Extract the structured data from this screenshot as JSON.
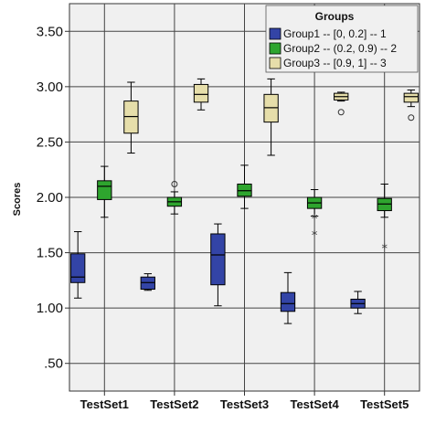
{
  "chart_data": {
    "type": "boxplot",
    "title": "",
    "xlabel": "",
    "ylabel": "Scores",
    "ylim": [
      0.25,
      3.75
    ],
    "yticks": [
      0.5,
      1.0,
      1.5,
      2.0,
      2.5,
      3.0,
      3.5
    ],
    "ytick_labels": [
      ".50",
      "1.00",
      "1.50",
      "2.00",
      "2.50",
      "3.00",
      "3.50"
    ],
    "grid": true,
    "legend_position": "top-right",
    "legend_title": "Groups",
    "categories": [
      "TestSet1",
      "TestSet2",
      "TestSet3",
      "TestSet4",
      "TestSet5"
    ],
    "series": [
      {
        "name": "Group1 -- [0, 0.2] -- 1",
        "color": "#3344a6",
        "boxes": [
          {
            "min": 1.09,
            "q1": 1.23,
            "median": 1.28,
            "q3": 1.49,
            "max": 1.69,
            "outliers": [],
            "extremes": []
          },
          {
            "min": 1.16,
            "q1": 1.17,
            "median": 1.23,
            "q3": 1.28,
            "max": 1.31,
            "outliers": [],
            "extremes": []
          },
          {
            "min": 1.02,
            "q1": 1.21,
            "median": 1.48,
            "q3": 1.67,
            "max": 1.76,
            "outliers": [],
            "extremes": []
          },
          {
            "min": 0.86,
            "q1": 0.97,
            "median": 1.04,
            "q3": 1.14,
            "max": 1.32,
            "outliers": [],
            "extremes": []
          },
          {
            "min": 0.95,
            "q1": 1.0,
            "median": 1.04,
            "q3": 1.08,
            "max": 1.15,
            "outliers": [],
            "extremes": []
          }
        ]
      },
      {
        "name": "Group2 -- (0.2, 0.9) -- 2",
        "color": "#2ea52e",
        "boxes": [
          {
            "min": 1.82,
            "q1": 1.98,
            "median": 2.1,
            "q3": 2.15,
            "max": 2.28,
            "outliers": [],
            "extremes": []
          },
          {
            "min": 1.85,
            "q1": 1.92,
            "median": 1.96,
            "q3": 2.0,
            "max": 2.05,
            "outliers": [
              2.12
            ],
            "extremes": []
          },
          {
            "min": 1.9,
            "q1": 2.01,
            "median": 2.06,
            "q3": 2.12,
            "max": 2.29,
            "outliers": [],
            "extremes": []
          },
          {
            "min": 1.83,
            "q1": 1.9,
            "median": 1.95,
            "q3": 2.0,
            "max": 2.07,
            "outliers": [],
            "extremes": [
              1.81,
              1.66
            ]
          },
          {
            "min": 1.82,
            "q1": 1.88,
            "median": 1.94,
            "q3": 1.99,
            "max": 2.12,
            "outliers": [],
            "extremes": [
              1.54
            ]
          }
        ]
      },
      {
        "name": "Group3 -- [0.9, 1] -- 3",
        "color": "#e6deaa",
        "boxes": [
          {
            "min": 2.4,
            "q1": 2.58,
            "median": 2.73,
            "q3": 2.87,
            "max": 3.04,
            "outliers": [],
            "extremes": []
          },
          {
            "min": 2.79,
            "q1": 2.86,
            "median": 2.93,
            "q3": 3.02,
            "max": 3.07,
            "outliers": [],
            "extremes": []
          },
          {
            "min": 2.38,
            "q1": 2.68,
            "median": 2.81,
            "q3": 2.93,
            "max": 3.07,
            "outliers": [],
            "extremes": []
          },
          {
            "min": 2.87,
            "q1": 2.88,
            "median": 2.91,
            "q3": 2.94,
            "max": 2.95,
            "outliers": [
              2.77
            ],
            "extremes": []
          },
          {
            "min": 2.82,
            "q1": 2.86,
            "median": 2.91,
            "q3": 2.94,
            "max": 2.97,
            "outliers": [
              2.72
            ],
            "extremes": []
          }
        ]
      }
    ]
  }
}
